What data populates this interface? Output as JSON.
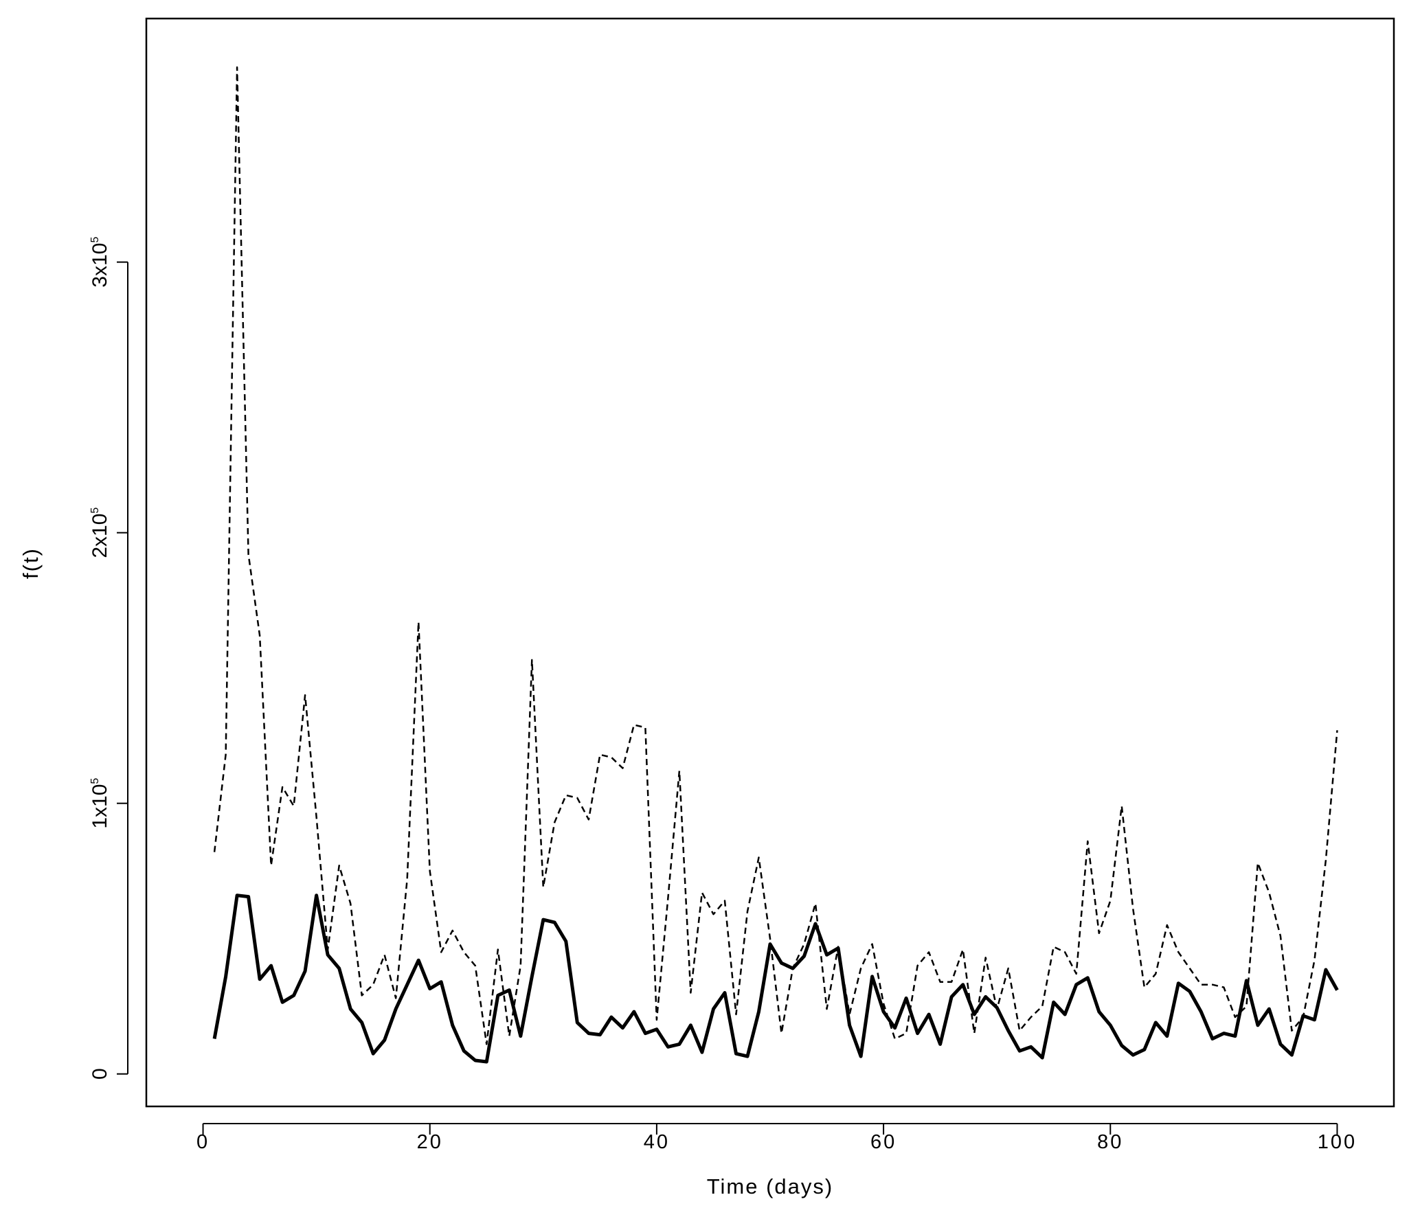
{
  "chart_data": {
    "type": "line",
    "title": "",
    "xlabel": "Time (days)",
    "ylabel": "f(t)",
    "xlim": [
      -5,
      105
    ],
    "ylim": [
      -12000,
      390000
    ],
    "x_ticks": [
      {
        "value": 0,
        "label": "0"
      },
      {
        "value": 20,
        "label": "20"
      },
      {
        "value": 40,
        "label": "40"
      },
      {
        "value": 60,
        "label": "60"
      },
      {
        "value": 80,
        "label": "80"
      },
      {
        "value": 100,
        "label": "100"
      }
    ],
    "y_ticks": [
      {
        "value": 0,
        "label": "0",
        "exp": ""
      },
      {
        "value": 100000,
        "label": "1x10",
        "exp": "5"
      },
      {
        "value": 200000,
        "label": "2x10",
        "exp": "5"
      },
      {
        "value": 300000,
        "label": "3x10",
        "exp": "5"
      }
    ],
    "grid": false,
    "x": [
      1,
      2,
      3,
      4,
      5,
      6,
      7,
      8,
      9,
      10,
      11,
      12,
      13,
      14,
      15,
      16,
      17,
      18,
      19,
      20,
      21,
      22,
      23,
      24,
      25,
      26,
      27,
      28,
      29,
      30,
      31,
      32,
      33,
      34,
      35,
      36,
      37,
      38,
      39,
      40,
      41,
      42,
      43,
      44,
      45,
      46,
      47,
      48,
      49,
      50,
      51,
      52,
      53,
      54,
      55,
      56,
      57,
      58,
      59,
      60,
      61,
      62,
      63,
      64,
      65,
      66,
      67,
      68,
      69,
      70,
      71,
      72,
      73,
      74,
      75,
      76,
      77,
      78,
      79,
      80,
      81,
      82,
      83,
      84,
      85,
      86,
      87,
      88,
      89,
      90,
      91,
      92,
      93,
      94,
      95,
      96,
      97,
      98,
      99,
      100
    ],
    "series": [
      {
        "style": "solid",
        "values": [
          13000,
          36000,
          66000,
          65500,
          35000,
          40000,
          26500,
          29000,
          38000,
          66000,
          44000,
          39000,
          24000,
          19000,
          7500,
          12500,
          24000,
          33000,
          42000,
          31500,
          34000,
          18000,
          8500,
          5000,
          4500,
          29000,
          31000,
          14000,
          36000,
          57000,
          56000,
          49000,
          19000,
          15000,
          14500,
          21000,
          17000,
          23000,
          15000,
          16500,
          10000,
          11000,
          18000,
          8000,
          24000,
          30000,
          7500,
          6500,
          23000,
          48000,
          41000,
          39000,
          43500,
          55500,
          44000,
          46500,
          18000,
          6500,
          36000,
          23000,
          17000,
          28000,
          15000,
          22000,
          11000,
          28500,
          33000,
          22000,
          28500,
          24500,
          16000,
          8500,
          10000,
          6000,
          26500,
          22000,
          33000,
          35500,
          23000,
          18000,
          10500,
          7000,
          9000,
          19000,
          14000,
          33500,
          30500,
          23000,
          13000,
          15000,
          14000,
          34500,
          18000,
          24000,
          11000,
          7000,
          21500,
          20000,
          38500,
          31000
        ]
      },
      {
        "style": "dashed",
        "values": [
          82000,
          118000,
          372000,
          192000,
          162000,
          77000,
          106000,
          99000,
          140000,
          95000,
          46000,
          77000,
          63000,
          29000,
          33000,
          44000,
          28000,
          72000,
          167000,
          75000,
          45000,
          53000,
          45000,
          40000,
          11000,
          46000,
          14000,
          40000,
          153000,
          69000,
          93000,
          103000,
          102000,
          94000,
          118000,
          117000,
          113000,
          129000,
          128000,
          20000,
          65000,
          112000,
          30000,
          67000,
          59000,
          64000,
          22000,
          60000,
          80000,
          50000,
          15000,
          39000,
          48000,
          63000,
          24000,
          47000,
          22000,
          39000,
          48000,
          26000,
          13000,
          15000,
          40000,
          45000,
          34000,
          34000,
          46000,
          15000,
          43000,
          24000,
          39000,
          16000,
          21000,
          25000,
          47000,
          45000,
          37000,
          86000,
          52000,
          64000,
          99000,
          61000,
          32000,
          37000,
          55000,
          45000,
          39000,
          33000,
          33000,
          32000,
          21000,
          25000,
          78000,
          67000,
          51000,
          16000,
          21000,
          42000,
          79000,
          127000
        ]
      }
    ]
  }
}
